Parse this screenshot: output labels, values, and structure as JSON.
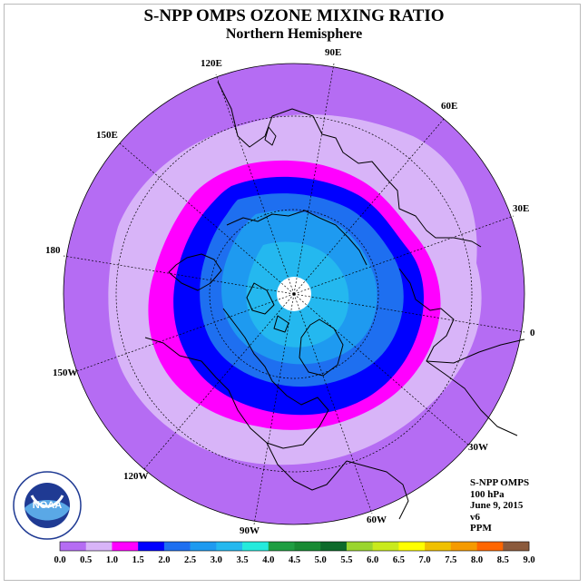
{
  "header": {
    "title": "S-NPP OMPS OZONE MIXING RATIO",
    "subtitle": "Northern Hemisphere"
  },
  "map": {
    "projection": "polar-stereographic-north",
    "graticule_labels": [
      "90E",
      "60E",
      "30E",
      "0",
      "30W",
      "60W",
      "90W",
      "120W",
      "150W",
      "180",
      "150E",
      "120E"
    ],
    "no_data_polar_cap": true,
    "region_colors": {
      "ocean_edge": "#b56cf3",
      "mid_lat": "#d8b4f8",
      "ring_magenta": "#ff00ff",
      "ring_blue": "#0000ff",
      "inner_medium": "#1e6ff0",
      "inner_light": "#1e9af0",
      "core_cyan": "#24b8ef",
      "coast_line": "#000000",
      "graticule": "#000000"
    }
  },
  "info": {
    "line1": "S-NPP OMPS",
    "line2": "100 hPa",
    "line3": "June 9, 2015",
    "line4": "v6",
    "line5": "PPM"
  },
  "logo": {
    "text": "NOAA",
    "ring_text": "NATIONAL OCEANIC AND ATMOSPHERIC ADMINISTRATION · U.S. DEPARTMENT OF COMMERCE",
    "icon": "noaa-logo"
  },
  "colorbar": {
    "ticks": [
      "0.0",
      "0.5",
      "1.0",
      "1.5",
      "2.0",
      "2.5",
      "3.0",
      "3.5",
      "4.0",
      "4.5",
      "5.0",
      "5.5",
      "6.0",
      "6.5",
      "7.0",
      "7.5",
      "8.0",
      "8.5",
      "9.0"
    ],
    "colors": [
      "#b56cf3",
      "#d8b4f8",
      "#ff00ff",
      "#0000ff",
      "#1e6ff0",
      "#1e9af0",
      "#24b8ef",
      "#24eadc",
      "#1f9e42",
      "#188a33",
      "#0d6a2a",
      "#9ad52e",
      "#c9ea1c",
      "#ffff00",
      "#f0c000",
      "#f59a00",
      "#ff6600",
      "#ff0000",
      "#8b5a3c"
    ]
  }
}
